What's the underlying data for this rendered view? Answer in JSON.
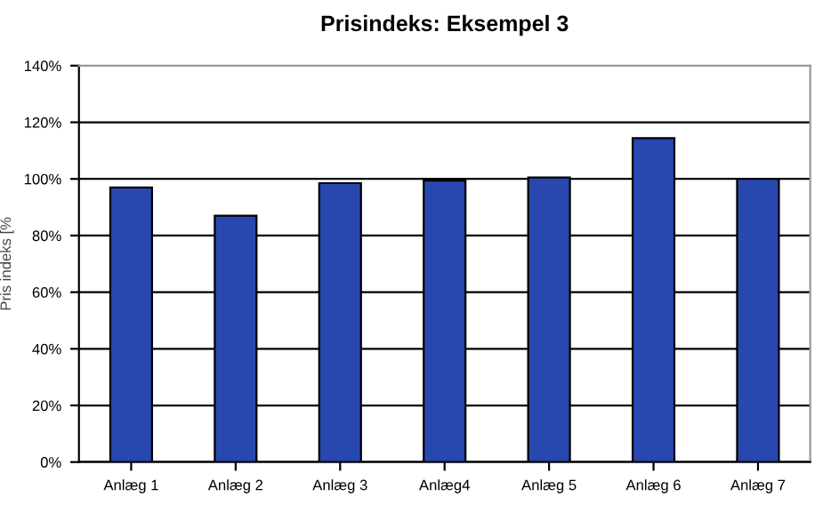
{
  "chart_data": {
    "type": "bar",
    "title": "Prisindeks: Eksempel 3",
    "ylabel": "Pris indeks [%",
    "categories": [
      "Anlæg 1",
      "Anlæg 2",
      "Anlæg 3",
      "Anlæg4",
      "Anlæg 5",
      "Anlæg 6",
      "Anlæg 7"
    ],
    "values": [
      97,
      87,
      98.5,
      99.4,
      100.5,
      114.4,
      100
    ],
    "color": "#2848b0",
    "ylim": [
      0,
      140
    ],
    "yticks": [
      {
        "value": 0,
        "label": "0%"
      },
      {
        "value": 20,
        "label": "20%"
      },
      {
        "value": 40,
        "label": "40%"
      },
      {
        "value": 60,
        "label": "60%"
      },
      {
        "value": 80,
        "label": "80%"
      },
      {
        "value": 100,
        "label": "100%"
      },
      {
        "value": 120,
        "label": "120%"
      },
      {
        "value": 140,
        "label": "140%"
      }
    ],
    "grid": "y",
    "legend": false
  }
}
